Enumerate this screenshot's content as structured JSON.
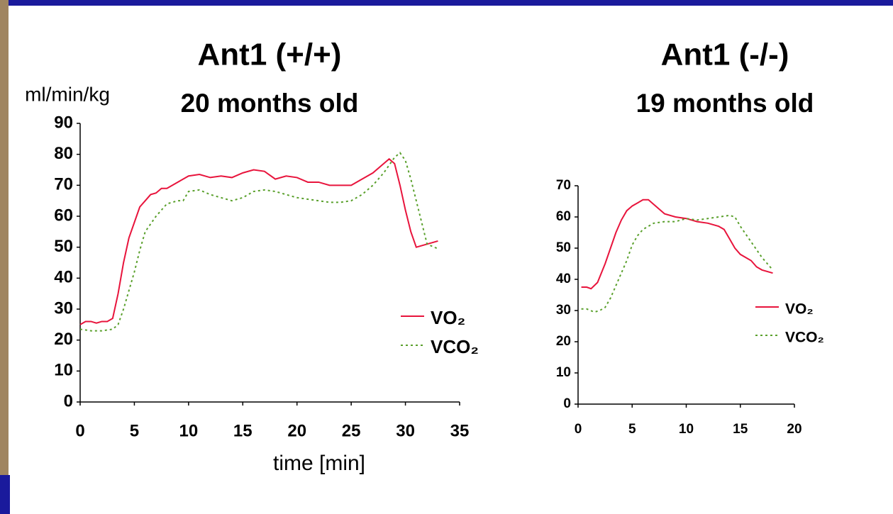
{
  "chart_data": [
    {
      "type": "line",
      "title": "Ant1 (+/+)",
      "subtitle": "20 months old",
      "y_label": "ml/min/kg",
      "x_label": "time [min]",
      "xlim": [
        0,
        35
      ],
      "xticks": [
        0,
        5,
        10,
        15,
        20,
        25,
        30,
        35
      ],
      "ylim": [
        0,
        90
      ],
      "yticks": [
        0,
        10,
        20,
        30,
        40,
        50,
        60,
        70,
        80,
        90
      ],
      "series": [
        {
          "name": "VO₂",
          "color": "#e8143c",
          "style": "solid",
          "x": [
            0,
            0.5,
            1,
            1.5,
            2,
            2.5,
            3,
            3.5,
            4,
            4.5,
            5,
            5.5,
            6,
            6.5,
            7,
            7.5,
            8,
            9,
            10,
            11,
            12,
            13,
            14,
            15,
            16,
            17,
            18,
            19,
            20,
            21,
            22,
            23,
            24,
            25,
            26,
            27,
            28,
            28.5,
            29,
            29.5,
            30,
            30.5,
            31,
            32,
            33
          ],
          "values": [
            25,
            26,
            26,
            25.5,
            26,
            26,
            27,
            35,
            45,
            53,
            58,
            63,
            65,
            67,
            67.5,
            69,
            69,
            71,
            73,
            73.5,
            72.5,
            73,
            72.5,
            74,
            75,
            74.5,
            72,
            73,
            72.5,
            71,
            71,
            70,
            70,
            70,
            72,
            74,
            77,
            78.5,
            77,
            70,
            62,
            55,
            50,
            51,
            52
          ]
        },
        {
          "name": "VCO₂",
          "color": "#5aa02c",
          "style": "dotted",
          "x": [
            0,
            1,
            2,
            3,
            3.5,
            4,
            4.5,
            5,
            5.5,
            6,
            7,
            8,
            9,
            9.5,
            10,
            11,
            12,
            13,
            14,
            15,
            16,
            17,
            18,
            19,
            20,
            21,
            22,
            23,
            24,
            25,
            26,
            27,
            28,
            29,
            29.5,
            30,
            30.5,
            31,
            31.5,
            32,
            33
          ],
          "values": [
            23.5,
            23,
            23,
            23.5,
            25,
            30,
            36,
            42,
            49,
            55,
            60,
            64,
            65,
            65,
            68,
            68.5,
            67,
            66,
            65,
            66,
            68,
            68.5,
            68,
            67,
            66,
            65.5,
            65,
            64.5,
            64.5,
            65,
            67,
            70,
            74,
            79,
            80.5,
            78,
            72,
            65,
            58,
            51,
            49.5
          ]
        }
      ]
    },
    {
      "type": "line",
      "title": "Ant1 (-/-)",
      "subtitle": "19 months old",
      "xlim": [
        0,
        20
      ],
      "xticks": [
        0,
        5,
        10,
        15,
        20
      ],
      "ylim": [
        0,
        70
      ],
      "yticks": [
        0,
        10,
        20,
        30,
        40,
        50,
        60,
        70
      ],
      "series": [
        {
          "name": "VO₂",
          "color": "#e8143c",
          "style": "solid",
          "x": [
            0.3,
            0.8,
            1.2,
            1.8,
            2.5,
            3,
            3.5,
            4,
            4.5,
            5,
            5.5,
            6,
            6.5,
            7,
            7.5,
            8,
            9,
            10,
            11,
            12,
            13,
            13.5,
            14,
            14.5,
            15,
            16,
            16.5,
            17,
            18
          ],
          "values": [
            37.5,
            37.5,
            37,
            39,
            45,
            50,
            55,
            59,
            62,
            63.5,
            64.5,
            65.5,
            65.5,
            64,
            62.5,
            61,
            60,
            59.5,
            58.5,
            58,
            57,
            56,
            53,
            50,
            48,
            46,
            44,
            43,
            42
          ]
        },
        {
          "name": "VCO₂",
          "color": "#5aa02c",
          "style": "dotted",
          "x": [
            0.3,
            0.8,
            1.5,
            2,
            2.5,
            3,
            3.5,
            4,
            4.5,
            5,
            5.5,
            6,
            7,
            8,
            9,
            10,
            11,
            12,
            13,
            14,
            14.5,
            15,
            16,
            17,
            17.5,
            18
          ],
          "values": [
            30.5,
            30.5,
            29.5,
            30,
            31,
            34,
            38,
            42,
            46,
            51,
            54,
            56,
            58,
            58.5,
            58.5,
            59.5,
            59,
            59.5,
            60,
            60.5,
            60,
            57,
            52,
            47,
            45,
            43
          ]
        }
      ]
    }
  ]
}
